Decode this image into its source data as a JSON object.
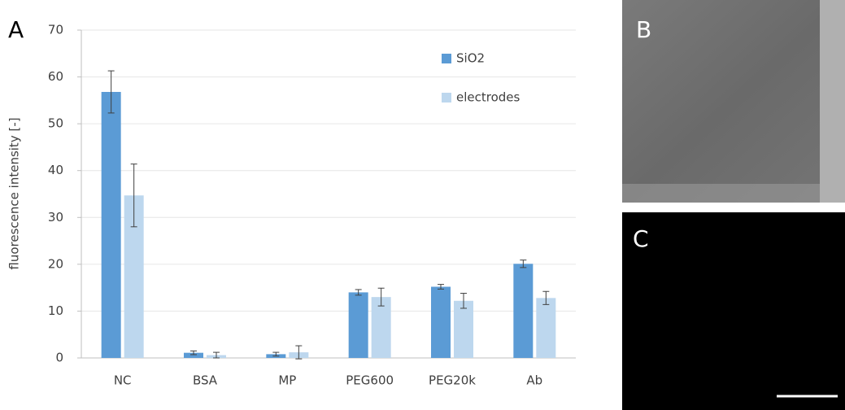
{
  "chart_data": {
    "type": "bar",
    "y_label": "fluorescence intensity [-]",
    "categories": [
      "NC",
      "BSA",
      "MP",
      "PEG600",
      "PEG20k",
      "Ab"
    ],
    "series": [
      {
        "name": "SiO2",
        "color": "#5b9bd5",
        "values": [
          56.8,
          1.1,
          0.8,
          14.0,
          15.2,
          20.1
        ],
        "errors": [
          4.5,
          0.4,
          0.4,
          0.6,
          0.5,
          0.8
        ]
      },
      {
        "name": "electrodes",
        "color": "#bdd7ee",
        "values": [
          34.7,
          0.6,
          1.2,
          13.0,
          12.2,
          12.8
        ],
        "errors": [
          6.7,
          0.6,
          1.4,
          1.9,
          1.6,
          1.4
        ]
      }
    ],
    "ylim": [
      0,
      70
    ],
    "yticks": [
      0,
      10,
      20,
      30,
      40,
      50,
      60,
      70
    ],
    "grid": true,
    "legend": "upper-right"
  },
  "panels": {
    "a": "A",
    "b": "B",
    "c": "C"
  }
}
